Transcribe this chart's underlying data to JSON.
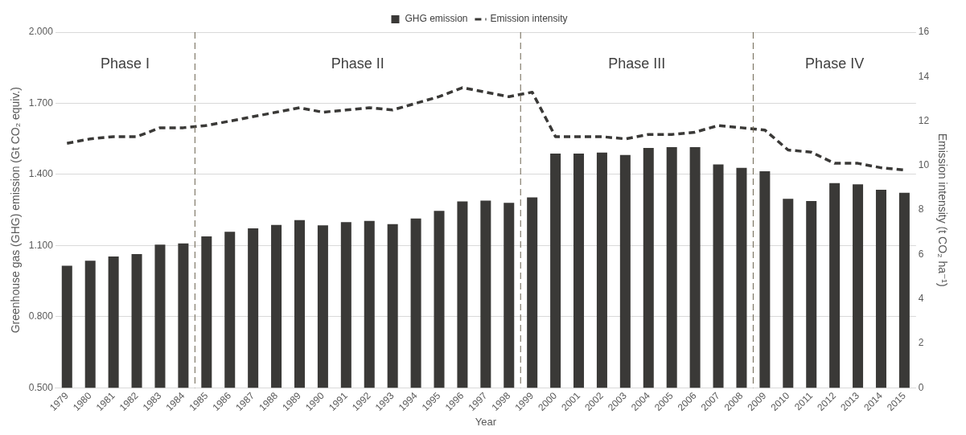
{
  "chart_data": {
    "type": "bar",
    "xlabel": "Year",
    "ylabel": "Greenhouse gas (GHG) emission (Gt CO₂ equiv.)",
    "y2label": "Emission intensity (t CO₂ ha⁻¹)",
    "x": [
      1979,
      1980,
      1981,
      1982,
      1983,
      1984,
      1985,
      1986,
      1987,
      1988,
      1989,
      1990,
      1991,
      1992,
      1993,
      1994,
      1995,
      1996,
      1997,
      1998,
      1999,
      2000,
      2001,
      2002,
      2003,
      2004,
      2005,
      2006,
      2007,
      2008,
      2009,
      2010,
      2011,
      2012,
      2013,
      2014,
      2015
    ],
    "xlim": [
      1978.5,
      2015.5
    ],
    "xticks": [
      1979,
      1980,
      1981,
      1982,
      1983,
      1984,
      1985,
      1986,
      1987,
      1988,
      1989,
      1990,
      1991,
      1992,
      1993,
      1994,
      1995,
      1996,
      1997,
      1998,
      1999,
      2000,
      2001,
      2002,
      2003,
      2004,
      2005,
      2006,
      2007,
      2008,
      2009,
      2010,
      2011,
      2012,
      2013,
      2014,
      2015
    ],
    "series": [
      {
        "name": "GHG emission",
        "type": "bar",
        "color": "#3a3937",
        "values": [
          1.015,
          1.036,
          1.054,
          1.064,
          1.104,
          1.109,
          1.139,
          1.158,
          1.173,
          1.187,
          1.207,
          1.185,
          1.199,
          1.204,
          1.19,
          1.214,
          1.246,
          1.286,
          1.29,
          1.28,
          1.303,
          1.488,
          1.488,
          1.492,
          1.482,
          1.512,
          1.515,
          1.515,
          1.442,
          1.428,
          1.413,
          1.297,
          1.288,
          1.363,
          1.358,
          1.335,
          1.323
        ]
      },
      {
        "name": "Emission intensity",
        "type": "line",
        "axis": "y2",
        "color": "#3a3937",
        "line_style": "dashed",
        "marker": "none",
        "values": [
          11.0,
          11.2,
          11.3,
          11.3,
          11.7,
          11.7,
          11.8,
          12.0,
          12.2,
          12.4,
          12.6,
          12.4,
          12.5,
          12.6,
          12.5,
          12.8,
          13.1,
          13.5,
          13.3,
          13.1,
          13.3,
          11.3,
          11.3,
          11.3,
          11.2,
          11.4,
          11.4,
          11.5,
          11.8,
          11.7,
          11.6,
          10.7,
          10.6,
          10.1,
          10.1,
          9.9,
          9.8
        ]
      }
    ],
    "ylim": [
      0.5,
      2.0
    ],
    "yticks": [
      {
        "value": 0.5,
        "label": "0.500"
      },
      {
        "value": 0.8,
        "label": "0.800"
      },
      {
        "value": 1.1,
        "label": "1.100"
      },
      {
        "value": 1.4,
        "label": "1.400"
      },
      {
        "value": 1.7,
        "label": "1.700"
      },
      {
        "value": 2.0,
        "label": "2.000"
      }
    ],
    "y2lim": [
      0,
      16
    ],
    "y2ticks": [
      0,
      2,
      4,
      6,
      8,
      10,
      12,
      14,
      16
    ],
    "grid": "y",
    "legend": "top",
    "ref_lines": [
      {
        "axis": "x",
        "value": 1984.5,
        "line_style": "dashed",
        "color": "#6b6350"
      },
      {
        "axis": "x",
        "value": 1998.5,
        "line_style": "dashed",
        "color": "#6b6350"
      },
      {
        "axis": "x",
        "value": 2008.5,
        "line_style": "dashed",
        "color": "#6b6350"
      }
    ],
    "annotations": [
      "Phase I",
      "Phase II",
      "Phase III",
      "Phase IV"
    ]
  }
}
